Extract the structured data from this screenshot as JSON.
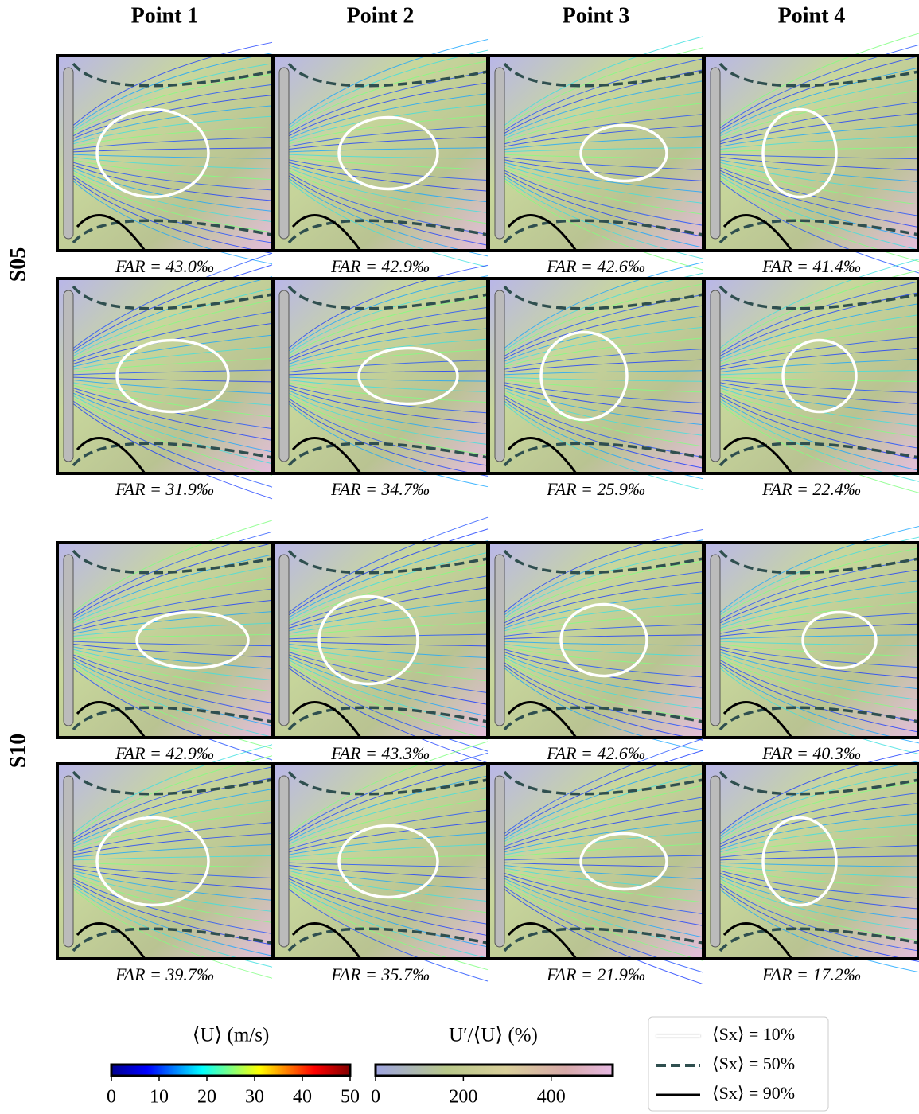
{
  "columns": [
    "Point 1",
    "Point 2",
    "Point 3",
    "Point 4"
  ],
  "groups": [
    {
      "label": "S05",
      "rows": [
        [
          "FAR = 43.0‰",
          "FAR = 42.9‰",
          "FAR = 42.6‰",
          "FAR = 41.4‰"
        ],
        [
          "FAR = 31.9‰",
          "FAR = 34.7‰",
          "FAR = 25.9‰",
          "FAR = 22.4‰"
        ]
      ]
    },
    {
      "label": "S10",
      "rows": [
        [
          "FAR = 42.9‰",
          "FAR = 43.3‰",
          "FAR = 42.6‰",
          "FAR = 40.3‰"
        ],
        [
          "FAR = 39.7‰",
          "FAR = 35.7‰",
          "FAR = 21.9‰",
          "FAR = 17.2‰"
        ]
      ]
    }
  ],
  "colorbars": [
    {
      "title": "⟨U⟩ (m/s)",
      "lim": [
        0,
        50
      ],
      "ticks": [
        0,
        10,
        20,
        30,
        40,
        50
      ]
    },
    {
      "title": "U′/⟨U⟩ (%)",
      "lim": [
        0,
        540
      ],
      "ticks": [
        0,
        200,
        400
      ]
    }
  ],
  "legend": [
    "⟨Sx⟩ = 10%",
    "⟨Sx⟩ = 50%",
    "⟨Sx⟩ = 90%"
  ]
}
